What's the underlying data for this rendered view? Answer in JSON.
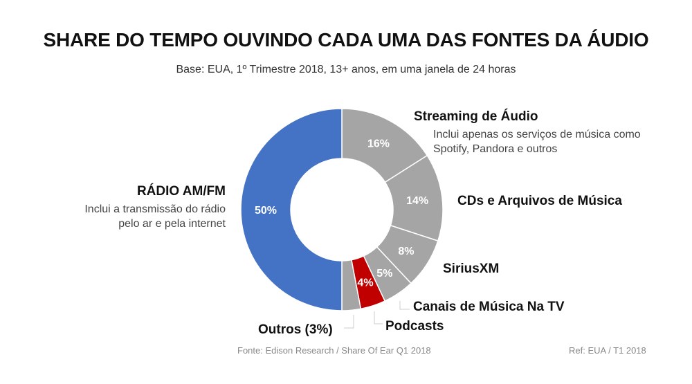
{
  "chart_data": {
    "type": "pie",
    "donut": true,
    "title": "SHARE DO TEMPO OUVINDO CADA UMA DAS FONTES DA ÁUDIO",
    "subtitle": "Base: EUA, 1º Trimestre 2018, 13+ anos, em uma janela de 24 horas",
    "slices": [
      {
        "name": "Streaming de Áudio",
        "value": 16,
        "label": "16%",
        "color": "#a5a5a5",
        "note": "Inclui apenas os serviços de música como Spotify, Pandora e outros"
      },
      {
        "name": "CDs e Arquivos de Música",
        "value": 14,
        "label": "14%",
        "color": "#a5a5a5"
      },
      {
        "name": "SiriusXM",
        "value": 8,
        "label": "8%",
        "color": "#a5a5a5"
      },
      {
        "name": "Canais de Música Na TV",
        "value": 5,
        "label": "5%",
        "color": "#a5a5a5"
      },
      {
        "name": "Podcasts",
        "value": 4,
        "label": "4%",
        "color": "#c00000"
      },
      {
        "name": "Outros (3%)",
        "value": 3,
        "label": "",
        "color": "#a5a5a5"
      },
      {
        "name": "RÁDIO AM/FM",
        "value": 50,
        "label": "50%",
        "color": "#4472c4",
        "note": "Inclui a transmissão do rádio pelo ar e pela internet"
      }
    ]
  },
  "footer": {
    "source": "Fonte: Edison Research / Share Of Ear Q1 2018",
    "ref": "Ref: EUA / T1 2018"
  }
}
